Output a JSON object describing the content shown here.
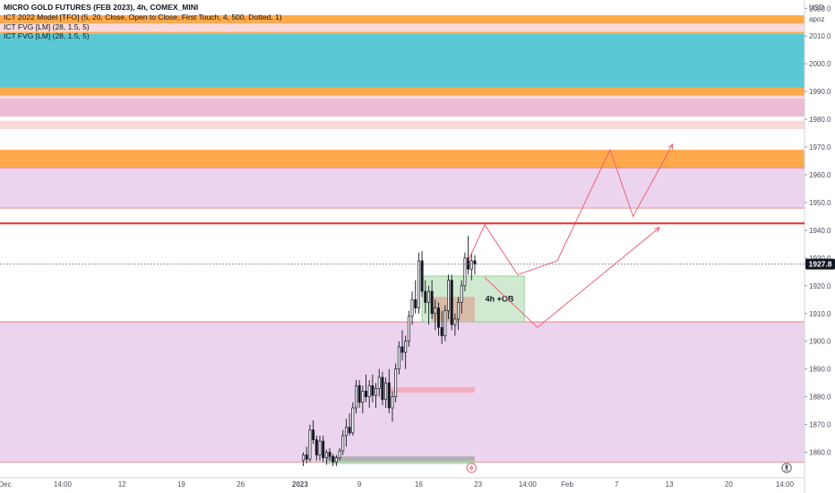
{
  "header": {
    "title": "MICRO GOLD FUTURES (FEB 2023), 4h, COMEX_MINI",
    "indicators": [
      "ICT 2022 Model [TFO] (5, 20, Close, Open to Close, First Touch, 4, 500, Dotted, 1)",
      "ICT FVG [LM] (28, 1.5, 5)",
      "ICT FVG [LM] (28, 1.5, 5)"
    ]
  },
  "price_axis": {
    "currency": "USD",
    "unit": "apoz",
    "current_price": "1927.8",
    "current_value": 1927.8,
    "tag_color": "#131722"
  },
  "colors": {
    "orange": "#ffa94d",
    "teal": "#5bc8d6",
    "pink": "#ecbcd4",
    "light_pink": "#fadada",
    "lavender": "#ecd4ee",
    "red_line": "#e53935",
    "ob_green": "#c8e6c9",
    "ob_brown": "#d9b3a0",
    "arrow": "#f06272"
  },
  "icons": {
    "replay": "lightning-icon",
    "gauge": "timer-icon"
  },
  "chart_data": {
    "type": "candlestick",
    "title": "MICRO GOLD FUTURES (FEB 2023), 4h, COMEX_MINI",
    "xlabel": "",
    "ylabel": "",
    "ylim": [
      1855,
      2023
    ],
    "y_ticks": [
      1860,
      1870,
      1880,
      1890,
      1900,
      1910,
      1920,
      1930,
      1940,
      1950,
      1960,
      1970,
      1980,
      1990,
      2000,
      2010,
      2020
    ],
    "y_tick_labels": [
      "1860.0",
      "1870.0",
      "1880.0",
      "1890.0",
      "1900.0",
      "1910.0",
      "1920.0",
      "1930.0",
      "1940.0",
      "1950.0",
      "1960.0",
      "1970.0",
      "1980.0",
      "1990.0",
      "2000.0",
      "2010.0",
      "2020.0"
    ],
    "x_ticks": [
      {
        "label": "Dec",
        "t": 1.5
      },
      {
        "label": "14:00",
        "t": 19
      },
      {
        "label": "12",
        "t": 37
      },
      {
        "label": "19",
        "t": 55
      },
      {
        "label": "26",
        "t": 73
      },
      {
        "label": "2023",
        "t": 91
      },
      {
        "label": "9",
        "t": 109
      },
      {
        "label": "16",
        "t": 127
      },
      {
        "label": "23",
        "t": 145
      },
      {
        "label": "14:00",
        "t": 160
      },
      {
        "label": "Feb",
        "t": 172
      },
      {
        "label": "7",
        "t": 187
      },
      {
        "label": "13",
        "t": 203
      },
      {
        "label": "20",
        "t": 221
      },
      {
        "label": "14:00",
        "t": 238
      }
    ],
    "zones": [
      {
        "kind": "orange",
        "y1": 2014.5,
        "y2": 2017.5
      },
      {
        "kind": "light_pink",
        "y1": 2011.5,
        "y2": 2014.5
      },
      {
        "kind": "orange",
        "y1": 2010.8,
        "y2": 2011.5
      },
      {
        "kind": "teal",
        "y1": 1991.5,
        "y2": 2010.8
      },
      {
        "kind": "orange",
        "y1": 1988.5,
        "y2": 1991.5
      },
      {
        "kind": "light_pink",
        "y1": 1987.5,
        "y2": 1988.5
      },
      {
        "kind": "pink",
        "y1": 1981.0,
        "y2": 1987.5
      },
      {
        "kind": "light_pink",
        "y1": 1976.5,
        "y2": 1979.5
      },
      {
        "kind": "orange",
        "y1": 1962.5,
        "y2": 1969.0
      },
      {
        "kind": "lavender",
        "y1": 1948.0,
        "y2": 1962.5
      },
      {
        "kind": "lavender",
        "y1": 1856.5,
        "y2": 1907.0
      }
    ],
    "levels": [
      {
        "value": 1942.5,
        "kind": "red_line"
      },
      {
        "value": 1927.8,
        "kind": "dotted"
      }
    ],
    "order_block": {
      "label": "4h +OB",
      "t1": 128,
      "t2": 159,
      "y1": 1907.0,
      "y2": 1923.5,
      "inner_t1": 131,
      "inner_t2": 144,
      "inner_y1": 1907.0,
      "inner_y2": 1916.0
    },
    "fvg_boxes": [
      {
        "t1": 118,
        "t2": 144,
        "y1": 1881.5,
        "y2": 1883.5,
        "color": "#f4a6b4"
      },
      {
        "t1": 99,
        "t2": 144,
        "y1": 1856.8,
        "y2": 1858.5,
        "color": "#a9a9a9"
      },
      {
        "t1": 99,
        "t2": 144,
        "y1": 1855.8,
        "y2": 1856.8,
        "color": "#a5d6a7"
      }
    ],
    "projections": [
      {
        "points": [
          [
            142,
            1929
          ],
          [
            147,
            1942
          ],
          [
            157,
            1924
          ],
          [
            169,
            1929
          ],
          [
            185,
            1969
          ],
          [
            192,
            1945
          ],
          [
            204,
            1971
          ]
        ]
      },
      {
        "points": [
          [
            147,
            1923
          ],
          [
            163,
            1905
          ],
          [
            200,
            1941
          ]
        ]
      }
    ],
    "candles": [
      {
        "t": 92,
        "o": 1857.0,
        "h": 1860.0,
        "l": 1855.0,
        "c": 1859.0
      },
      {
        "t": 93,
        "o": 1859.0,
        "h": 1862.0,
        "l": 1856.0,
        "c": 1857.5
      },
      {
        "t": 94,
        "o": 1857.5,
        "h": 1870.0,
        "l": 1856.5,
        "c": 1868.0
      },
      {
        "t": 95,
        "o": 1868.0,
        "h": 1871.5,
        "l": 1863.0,
        "c": 1864.5
      },
      {
        "t": 96,
        "o": 1864.5,
        "h": 1866.0,
        "l": 1857.0,
        "c": 1859.0
      },
      {
        "t": 97,
        "o": 1859.0,
        "h": 1866.0,
        "l": 1857.0,
        "c": 1864.0
      },
      {
        "t": 98,
        "o": 1864.0,
        "h": 1866.0,
        "l": 1856.5,
        "c": 1858.0
      },
      {
        "t": 99,
        "o": 1858.0,
        "h": 1861.0,
        "l": 1855.5,
        "c": 1860.0
      },
      {
        "t": 100,
        "o": 1860.0,
        "h": 1861.5,
        "l": 1857.0,
        "c": 1858.5
      },
      {
        "t": 101,
        "o": 1858.5,
        "h": 1859.5,
        "l": 1855.0,
        "c": 1856.5
      },
      {
        "t": 102,
        "o": 1856.5,
        "h": 1859.0,
        "l": 1855.0,
        "c": 1858.0
      },
      {
        "t": 103,
        "o": 1858.0,
        "h": 1861.5,
        "l": 1857.0,
        "c": 1860.5
      },
      {
        "t": 104,
        "o": 1860.5,
        "h": 1868.0,
        "l": 1859.0,
        "c": 1866.0
      },
      {
        "t": 105,
        "o": 1866.0,
        "h": 1872.0,
        "l": 1862.0,
        "c": 1869.0
      },
      {
        "t": 106,
        "o": 1869.0,
        "h": 1874.0,
        "l": 1866.0,
        "c": 1867.0
      },
      {
        "t": 107,
        "o": 1867.0,
        "h": 1878.0,
        "l": 1866.0,
        "c": 1876.0
      },
      {
        "t": 108,
        "o": 1876.0,
        "h": 1886.0,
        "l": 1874.0,
        "c": 1884.0
      },
      {
        "t": 109,
        "o": 1884.0,
        "h": 1886.0,
        "l": 1876.0,
        "c": 1878.0
      },
      {
        "t": 110,
        "o": 1878.0,
        "h": 1884.0,
        "l": 1874.0,
        "c": 1882.0
      },
      {
        "t": 111,
        "o": 1882.0,
        "h": 1888.0,
        "l": 1878.0,
        "c": 1880.0
      },
      {
        "t": 112,
        "o": 1880.0,
        "h": 1886.0,
        "l": 1876.0,
        "c": 1884.0
      },
      {
        "t": 113,
        "o": 1884.0,
        "h": 1888.0,
        "l": 1878.0,
        "c": 1880.5
      },
      {
        "t": 114,
        "o": 1880.5,
        "h": 1885.0,
        "l": 1876.0,
        "c": 1883.0
      },
      {
        "t": 115,
        "o": 1883.0,
        "h": 1890.0,
        "l": 1880.0,
        "c": 1887.0
      },
      {
        "t": 116,
        "o": 1887.0,
        "h": 1889.0,
        "l": 1877.0,
        "c": 1879.0
      },
      {
        "t": 117,
        "o": 1879.0,
        "h": 1887.0,
        "l": 1876.0,
        "c": 1885.0
      },
      {
        "t": 118,
        "o": 1885.0,
        "h": 1890.0,
        "l": 1874.0,
        "c": 1876.0
      },
      {
        "t": 119,
        "o": 1876.0,
        "h": 1882.0,
        "l": 1871.0,
        "c": 1880.0
      },
      {
        "t": 120,
        "o": 1880.0,
        "h": 1892.0,
        "l": 1878.0,
        "c": 1890.0
      },
      {
        "t": 121,
        "o": 1890.0,
        "h": 1900.0,
        "l": 1888.0,
        "c": 1898.0
      },
      {
        "t": 122,
        "o": 1898.0,
        "h": 1904.0,
        "l": 1893.0,
        "c": 1896.0
      },
      {
        "t": 123,
        "o": 1896.0,
        "h": 1902.0,
        "l": 1890.0,
        "c": 1900.0
      },
      {
        "t": 124,
        "o": 1900.0,
        "h": 1911.0,
        "l": 1898.0,
        "c": 1909.0
      },
      {
        "t": 125,
        "o": 1909.0,
        "h": 1918.0,
        "l": 1906.0,
        "c": 1915.0
      },
      {
        "t": 126,
        "o": 1915.0,
        "h": 1922.0,
        "l": 1910.0,
        "c": 1912.0
      },
      {
        "t": 127,
        "o": 1912.0,
        "h": 1932.0,
        "l": 1910.0,
        "c": 1929.0
      },
      {
        "t": 128,
        "o": 1929.0,
        "h": 1932.5,
        "l": 1916.0,
        "c": 1918.0
      },
      {
        "t": 129,
        "o": 1918.0,
        "h": 1922.0,
        "l": 1910.0,
        "c": 1914.0
      },
      {
        "t": 130,
        "o": 1914.0,
        "h": 1920.0,
        "l": 1906.0,
        "c": 1918.0
      },
      {
        "t": 131,
        "o": 1918.0,
        "h": 1922.0,
        "l": 1908.0,
        "c": 1910.0
      },
      {
        "t": 132,
        "o": 1910.0,
        "h": 1915.0,
        "l": 1904.0,
        "c": 1912.0
      },
      {
        "t": 133,
        "o": 1912.0,
        "h": 1914.0,
        "l": 1902.0,
        "c": 1905.0
      },
      {
        "t": 134,
        "o": 1905.0,
        "h": 1911.0,
        "l": 1899.0,
        "c": 1902.0
      },
      {
        "t": 135,
        "o": 1902.0,
        "h": 1913.0,
        "l": 1900.0,
        "c": 1911.0
      },
      {
        "t": 136,
        "o": 1911.0,
        "h": 1924.0,
        "l": 1908.0,
        "c": 1922.0
      },
      {
        "t": 137,
        "o": 1922.0,
        "h": 1924.0,
        "l": 1904.0,
        "c": 1906.0
      },
      {
        "t": 138,
        "o": 1906.0,
        "h": 1910.0,
        "l": 1902.0,
        "c": 1908.0
      },
      {
        "t": 139,
        "o": 1908.0,
        "h": 1916.0,
        "l": 1904.0,
        "c": 1914.0
      },
      {
        "t": 140,
        "o": 1914.0,
        "h": 1922.0,
        "l": 1910.0,
        "c": 1920.0
      },
      {
        "t": 141,
        "o": 1920.0,
        "h": 1932.0,
        "l": 1918.0,
        "c": 1930.0
      },
      {
        "t": 142,
        "o": 1930.0,
        "h": 1938.0,
        "l": 1924.0,
        "c": 1926.0
      },
      {
        "t": 143,
        "o": 1926.0,
        "h": 1932.0,
        "l": 1922.0,
        "c": 1929.0
      },
      {
        "t": 144,
        "o": 1929.0,
        "h": 1931.0,
        "l": 1924.0,
        "c": 1927.8
      }
    ]
  }
}
